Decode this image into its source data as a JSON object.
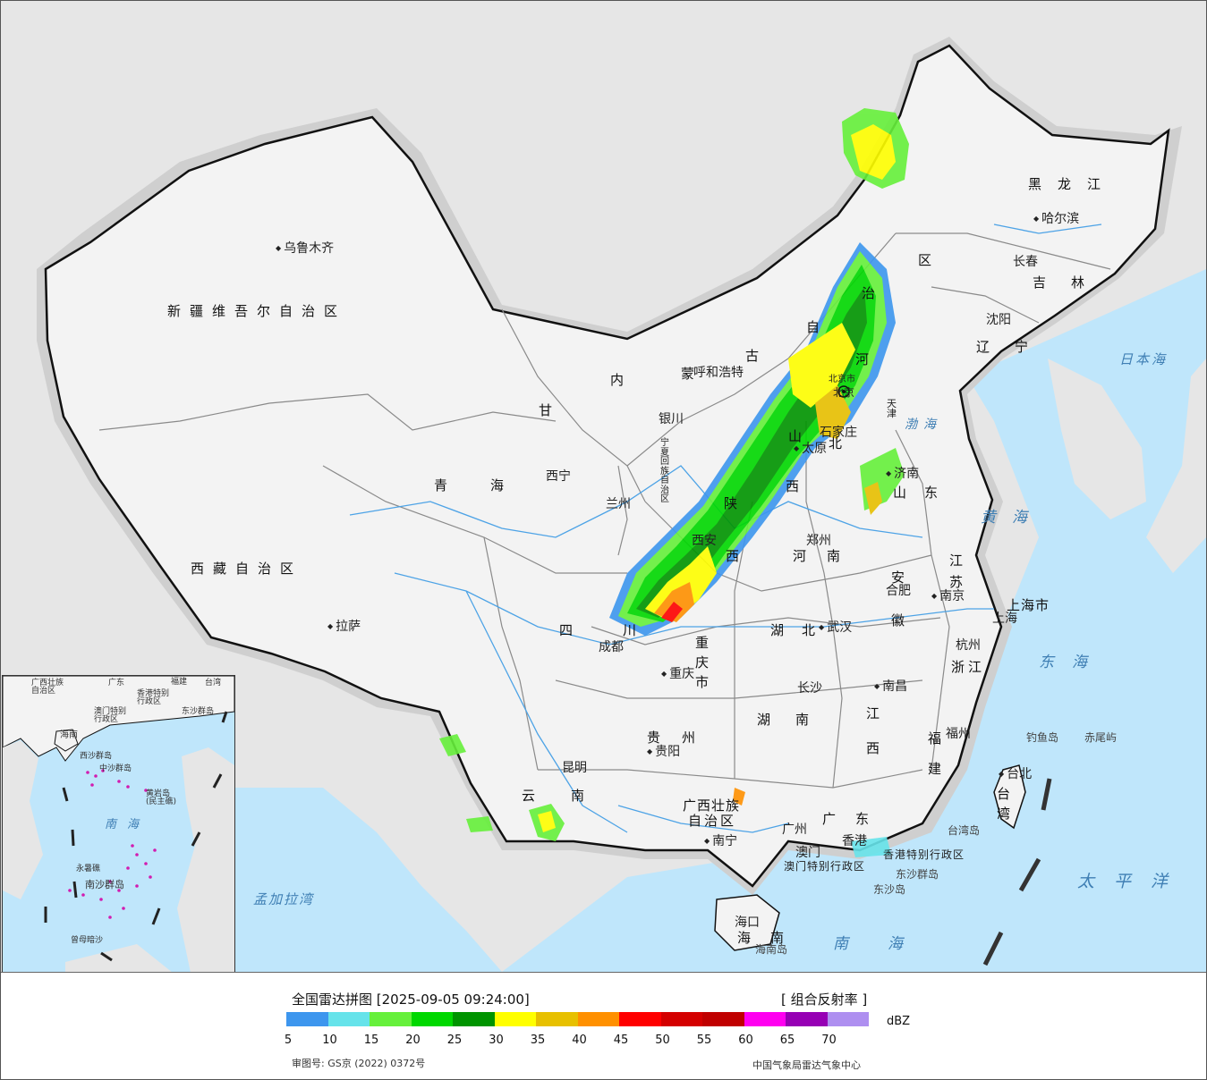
{
  "map": {
    "colors": {
      "sea": "#bfe6fb",
      "land_outside": "#e6e6e6",
      "china_land": "#f3f3f3",
      "border": "#111111",
      "province_line": "#8a8a8a",
      "river": "#4da3e6"
    },
    "provinces": {
      "xinjiang": "新疆维吾尔自治区",
      "xizang": "西藏自治区",
      "qinghai": "青海",
      "gansu": "甘",
      "neimenggu_1": "内",
      "neimenggu_2": "蒙",
      "neimenggu_3": "古",
      "neimenggu_4": "自",
      "neimenggu_5": "治",
      "neimenggu_6": "区",
      "heilongjiang": "黑龙江",
      "jilin": "吉林",
      "liaoning": "辽宁",
      "hebei_1": "河",
      "hebei_2": "北",
      "shanxi_1": "山",
      "shanxi_2": "西",
      "shandong": "山东",
      "ningxia": "宁夏回族自治区",
      "shaanxi_1": "陕",
      "shaanxi_2": "西",
      "henan_1": "河",
      "henan_2": "南",
      "jiangsu": "江苏",
      "anhui_1": "安",
      "anhui_2": "徽",
      "hubei": "湖北",
      "sichuan": "四川",
      "chongqing": "重庆市",
      "zhejiang": "浙江",
      "hunan": "湖南",
      "jiangxi": "江西",
      "fujian_1": "福",
      "fujian_2": "建",
      "guizhou": "贵州",
      "yunnan": "云南",
      "guangxi_1": "广西壮族",
      "guangxi_2": "自治区",
      "guangdong": "广东",
      "hainan": "海南",
      "taiwan_1": "台",
      "taiwan_2": "湾",
      "shanghai": "上海市",
      "tianjin": "天津",
      "beijing": "北京市",
      "hongkong_sar": "香港特别行政区",
      "macao_sar": "澳门特别行政区"
    },
    "cities": {
      "urumqi": "乌鲁木齐",
      "lhasa": "拉萨",
      "xining": "西宁",
      "lanzhou": "兰州",
      "yinchuan": "银川",
      "hohhot": "呼和浩特",
      "beijing": "北京",
      "shijiazhuang": "石家庄",
      "taiyuan": "太原",
      "jinan": "济南",
      "zhengzhou": "郑州",
      "xian": "西安",
      "chengdu": "成都",
      "chongqing": "重庆",
      "wuhan": "武汉",
      "hefei": "合肥",
      "nanjing": "南京",
      "shanghai": "上海",
      "hangzhou": "杭州",
      "nanchang": "南昌",
      "changsha": "长沙",
      "guiyang": "贵阳",
      "kunming": "昆明",
      "nanning": "南宁",
      "guangzhou": "广州",
      "hongkong": "香港",
      "macao": "澳门",
      "haikou": "海口",
      "fuzhou": "福州",
      "taibei": "台北",
      "shenyang": "沈阳",
      "changchun": "长春",
      "harbin": "哈尔滨"
    },
    "seas": {
      "bohai": "渤海",
      "huanghai": "黄海",
      "donghai": "东海",
      "nanhai": "南海",
      "riben_hai": "日本海",
      "taipingyang": "太平洋",
      "mengjiala_wan": "孟加拉湾"
    },
    "islands": {
      "diaoyu": "钓鱼岛",
      "chiwei": "赤尾屿",
      "taiwan_dao": "台湾岛",
      "dongsha_qundao": "东沙群岛",
      "dongsha_dao": "东沙岛",
      "hainan_dao": "海南岛"
    },
    "inset": {
      "labels": {
        "guangxi": "广西壮族\n自治区",
        "guangdong": "广东",
        "fujian": "福建",
        "taiwan": "台湾",
        "hk": "香港特别\n行政区",
        "macao": "澳门特别\n行政区",
        "dongsha": "东沙群岛",
        "hainan": "海南",
        "xisha": "西沙群岛",
        "zhongsha": "中沙群岛",
        "huangyan": "黄岩岛\n(民主礁)",
        "nanhai": "南海",
        "yongshu": "永暑礁",
        "nansha": "南沙群岛",
        "zengmu": "曾母暗沙"
      }
    }
  },
  "legend": {
    "title": "全国雷达拼图 [2025-09-05 09:24:00]",
    "product": "[ 组合反射率 ]",
    "unit": "dBZ",
    "scale_colors": [
      "#3d96ee",
      "#66e3ea",
      "#66f03b",
      "#00d800",
      "#009400",
      "#ffff00",
      "#e7c000",
      "#ff9000",
      "#ff0000",
      "#d40000",
      "#c00000",
      "#ff00f0",
      "#9600b4",
      "#ae8ff0"
    ],
    "scale_values": [
      "5",
      "10",
      "15",
      "20",
      "25",
      "30",
      "35",
      "40",
      "45",
      "50",
      "55",
      "60",
      "65",
      "70"
    ],
    "approval": "审图号: GS京 (2022) 0372号",
    "source": "中国气象局雷达气象中心"
  }
}
